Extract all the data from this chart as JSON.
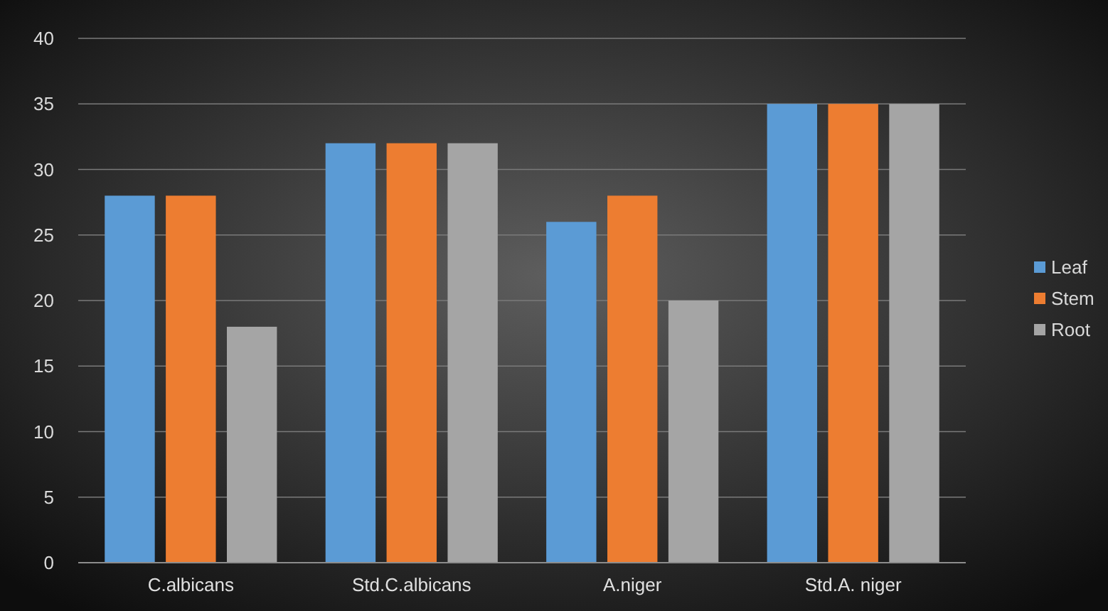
{
  "chart_data": {
    "type": "bar",
    "categories": [
      "C.albicans",
      "Std.C.albicans",
      "A.niger",
      "Std.A. niger"
    ],
    "series": [
      {
        "name": "Leaf",
        "color": "#5b9bd5",
        "values": [
          28,
          32,
          26,
          35
        ]
      },
      {
        "name": "Stem",
        "color": "#ed7d31",
        "values": [
          28,
          32,
          28,
          35
        ]
      },
      {
        "name": "Root",
        "color": "#a5a5a5",
        "values": [
          18,
          32,
          20,
          35
        ]
      }
    ],
    "ylim": [
      0,
      40
    ],
    "yticks": [
      0,
      5,
      10,
      15,
      20,
      25,
      30,
      35,
      40
    ],
    "grid": "y",
    "legend": "right"
  }
}
